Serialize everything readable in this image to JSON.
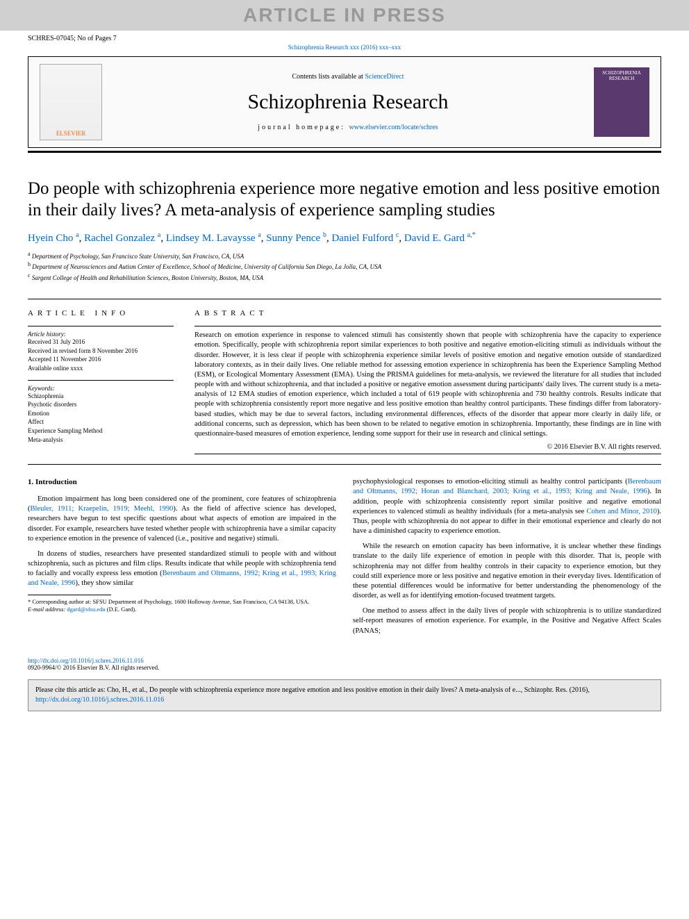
{
  "banner": "ARTICLE IN PRESS",
  "header": {
    "left": "SCHRES-07045; No of Pages 7"
  },
  "reflink": "Schizophrenia Research xxx (2016) xxx–xxx",
  "journal_card": {
    "publisher_logo": "ELSEVIER",
    "contents_prefix": "Contents lists available at ",
    "contents_link": "ScienceDirect",
    "journal_name": "Schizophrenia Research",
    "homepage_label": "journal homepage: ",
    "homepage_url": "www.elsevier.com/locate/schres",
    "cover_text": "SCHIZOPHRENIA RESEARCH"
  },
  "title": "Do people with schizophrenia experience more negative emotion and less positive emotion in their daily lives? A meta-analysis of experience sampling studies",
  "authors": [
    {
      "name": "Hyein Cho",
      "affs": "a"
    },
    {
      "name": "Rachel Gonzalez",
      "affs": "a"
    },
    {
      "name": "Lindsey M. Lavaysse",
      "affs": "a"
    },
    {
      "name": "Sunny Pence",
      "affs": "b"
    },
    {
      "name": "Daniel Fulford",
      "affs": "c"
    },
    {
      "name": "David E. Gard",
      "affs": "a,*"
    }
  ],
  "affiliations": [
    {
      "key": "a",
      "text": "Department of Psychology, San Francisco State University, San Francisco, CA, USA"
    },
    {
      "key": "b",
      "text": "Department of Neurosciences and Autism Center of Excellence, School of Medicine, University of California San Diego, La Jolla, CA, USA"
    },
    {
      "key": "c",
      "text": "Sargent College of Health and Rehabilitation Sciences, Boston University, Boston, MA, USA"
    }
  ],
  "info": {
    "head": "ARTICLE INFO",
    "history_label": "Article history:",
    "history_lines": [
      "Received 31 July 2016",
      "Received in revised form 8 November 2016",
      "Accepted 11 November 2016",
      "Available online xxxx"
    ],
    "keywords_label": "Keywords:",
    "keywords": [
      "Schizophrenia",
      "Psychotic disorders",
      "Emotion",
      "Affect",
      "Experience Sampling Method",
      "Meta-analysis"
    ]
  },
  "abstract": {
    "head": "ABSTRACT",
    "text": "Research on emotion experience in response to valenced stimuli has consistently shown that people with schizophrenia have the capacity to experience emotion. Specifically, people with schizophrenia report similar experiences to both positive and negative emotion-eliciting stimuli as individuals without the disorder. However, it is less clear if people with schizophrenia experience similar levels of positive emotion and negative emotion outside of standardized laboratory contexts, as in their daily lives. One reliable method for assessing emotion experience in schizophrenia has been the Experience Sampling Method (ESM), or Ecological Momentary Assessment (EMA). Using the PRISMA guidelines for meta-analysis, we reviewed the literature for all studies that included people with and without schizophrenia, and that included a positive or negative emotion assessment during participants' daily lives. The current study is a meta-analysis of 12 EMA studies of emotion experience, which included a total of 619 people with schizophrenia and 730 healthy controls. Results indicate that people with schizophrenia consistently report more negative and less positive emotion than healthy control participants. These findings differ from laboratory-based studies, which may be due to several factors, including environmental differences, effects of the disorder that appear more clearly in daily life, or additional concerns, such as depression, which has been shown to be related to negative emotion in schizophrenia. Importantly, these findings are in line with questionnaire-based measures of emotion experience, lending some support for their use in research and clinical settings.",
    "copyright": "© 2016 Elsevier B.V. All rights reserved."
  },
  "intro": {
    "heading": "1. Introduction",
    "p1a": "Emotion impairment has long been considered one of the prominent, core features of schizophrenia (",
    "p1cite": "Bleuler, 1911; Kraepelin, 1919; Meehl, 1990",
    "p1b": "). As the field of affective science has developed, researchers have begun to test specific questions about what aspects of emotion are impaired in the disorder. For example, researchers have tested whether people with schizophrenia have a similar capacity to experience emotion in the presence of valenced (i.e., positive and negative) stimuli.",
    "p2a": "In dozens of studies, researchers have presented standardized stimuli to people with and without schizophrenia, such as pictures and film clips. Results indicate that while people with schizophrenia tend to facially and vocally express less emotion (",
    "p2cite": "Berenbaum and Oltmanns, 1992; Kring et al., 1993; Kring and Neale, 1996",
    "p2b": "), they show similar",
    "col2_p1a": "psychophysiological responses to emotion-eliciting stimuli as healthy control participants (",
    "col2_p1cite": "Berenbaum and Oltmanns, 1992; Horan and Blanchard, 2003; Kring et al., 1993; Kring and Neale, 1996",
    "col2_p1b": "). In addition, people with schizophrenia consistently report similar positive and negative emotional experiences to valenced stimuli as healthy individuals (for a meta-analysis see ",
    "col2_p1cite2": "Cohen and Minor, 2010",
    "col2_p1c": "). Thus, people with schizophrenia do not appear to differ in their emotional experience and clearly do not have a diminished capacity to experience emotion.",
    "col2_p2": "While the research on emotion capacity has been informative, it is unclear whether these findings translate to the daily life experience of emotion in people with this disorder. That is, people with schizophrenia may not differ from healthy controls in their capacity to experience emotion, but they could still experience more or less positive and negative emotion in their everyday lives. Identification of these potential differences would be informative for better understanding the phenomenology of the disorder, as well as for identifying emotion-focused treatment targets.",
    "col2_p3": "One method to assess affect in the daily lives of people with schizophrenia is to utilize standardized self-report measures of emotion experience. For example, in the Positive and Negative Affect Scales (PANAS;"
  },
  "footnote": {
    "corr": "* Corresponding author at: SFSU Department of Psychology, 1600 Holloway Avenue, San Francisco, CA 94138, USA.",
    "email_label": "E-mail address: ",
    "email": "dgard@sfsu.edu",
    "email_name": " (D.E. Gard)."
  },
  "doi": {
    "url": "http://dx.doi.org/10.1016/j.schres.2016.11.016",
    "issn": "0920-9964/© 2016 Elsevier B.V. All rights reserved."
  },
  "citebox": {
    "text": "Please cite this article as: Cho, H., et al., Do people with schizophrenia experience more negative emotion and less positive emotion in their daily lives? A meta-analysis of e..., Schizophr. Res. (2016), ",
    "url": "http://dx.doi.org/10.1016/j.schres.2016.11.016"
  },
  "colors": {
    "link": "#0066cc",
    "banner_bg": "#d0d0d0",
    "banner_fg": "#999999",
    "citebox_bg": "#e8e8e8"
  }
}
